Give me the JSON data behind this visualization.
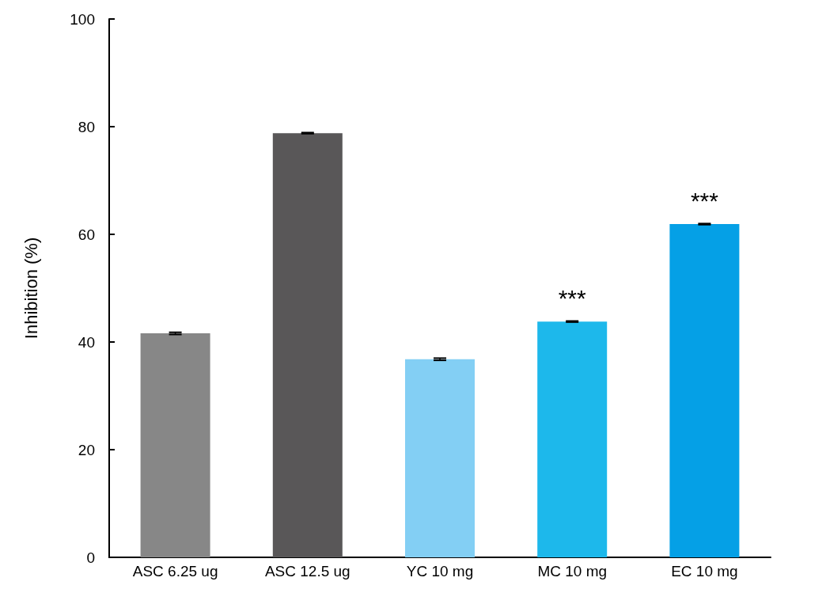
{
  "chart_data": {
    "type": "bar",
    "ylabel": "Inhibition (%)",
    "categories": [
      "ASC 6.25 ug",
      "ASC 12.5 ug",
      "YC 10 mg",
      "MC 10 mg",
      "EC 10 mg"
    ],
    "values": [
      41.6,
      78.8,
      36.8,
      43.8,
      61.9
    ],
    "colors": [
      "#878787",
      "#595758",
      "#83cff4",
      "#1db8eb",
      "#05a0e6"
    ],
    "errors": [
      0.2,
      0.1,
      0.2,
      0.1,
      0.1
    ],
    "annotations": [
      {
        "text": "***",
        "x": "MC 10 mg",
        "y": 43.8
      },
      {
        "text": "***",
        "x": "EC 10 mg",
        "y": 61.9
      }
    ],
    "ylim": [
      0,
      100
    ],
    "yticks": [
      0,
      20,
      40,
      60,
      80,
      100
    ],
    "grid": false
  }
}
